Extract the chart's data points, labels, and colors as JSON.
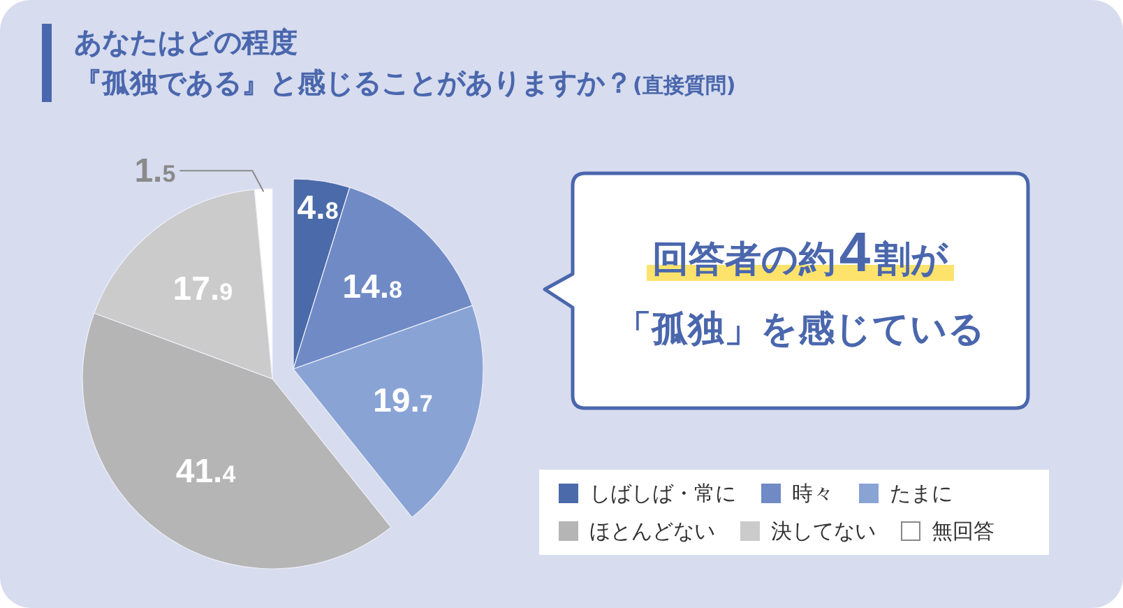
{
  "chart_data": {
    "type": "pie",
    "title": "あなたはどの程度『孤独である』と感じることがありますか？",
    "subtitle": "(直接質問)",
    "categories": [
      "しばしば・常に",
      "時々",
      "たまに",
      "ほとんどない",
      "決してない",
      "無回答"
    ],
    "values": [
      4.8,
      14.8,
      19.7,
      41.4,
      17.9,
      1.5
    ],
    "colors": [
      "#4a6aa9",
      "#708ac6",
      "#89a3d5",
      "#b5b5b5",
      "#cbcbcb",
      "#ffffff"
    ],
    "data_labels": true,
    "legend": "bottom right",
    "annotations": [
      "回答者の約4割が「孤独」を感じている"
    ]
  }
}
